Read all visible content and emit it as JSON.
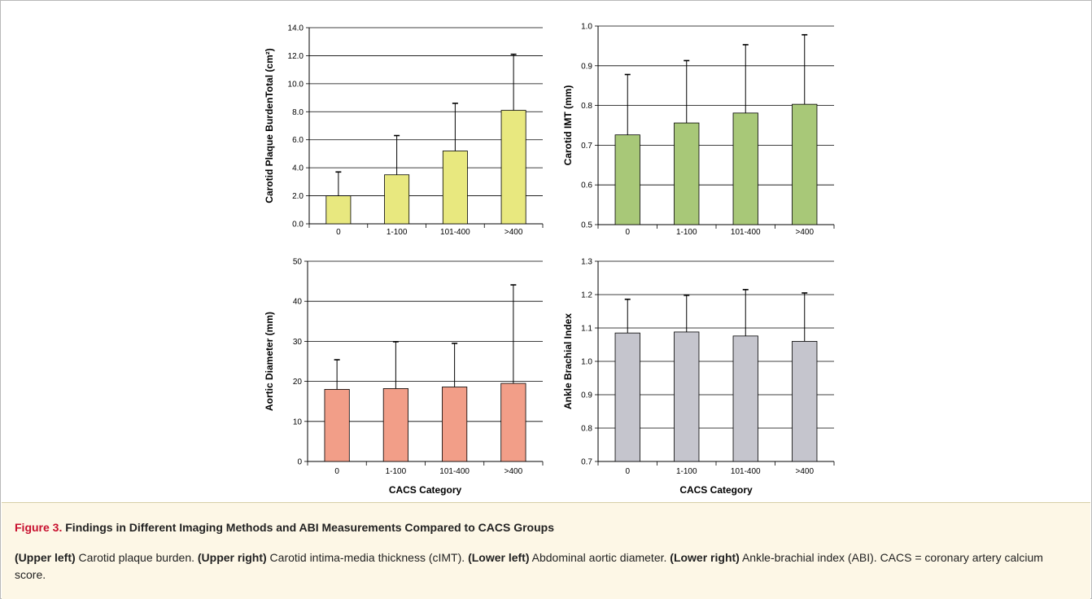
{
  "chart_data": [
    {
      "type": "bar",
      "categories": [
        "0",
        "1-100",
        "101-400",
        ">400"
      ],
      "values": [
        2.0,
        3.5,
        5.2,
        8.1
      ],
      "error_upper": [
        3.7,
        6.3,
        8.6,
        12.1
      ],
      "ylabel": "Carotid Plaque BurdenTotal (cm²)",
      "xlabel": "",
      "ylim": [
        0.0,
        14.0
      ],
      "yticks": [
        "0.0",
        "2.0",
        "4.0",
        "6.0",
        "8.0",
        "10.0",
        "12.0",
        "14.0"
      ],
      "color": "#e8e87f",
      "grid": true
    },
    {
      "type": "bar",
      "categories": [
        "0",
        "1-100",
        "101-400",
        ">400"
      ],
      "values": [
        0.726,
        0.756,
        0.781,
        0.803
      ],
      "error_upper": [
        0.878,
        0.913,
        0.953,
        0.978
      ],
      "ylabel": "Carotid IMT (mm)",
      "xlabel": "",
      "ylim": [
        0.5,
        1.0
      ],
      "yticks": [
        "0.5",
        "0.6",
        "0.7",
        "0.8",
        "0.9",
        "1.0"
      ],
      "color": "#a8c878",
      "grid": true
    },
    {
      "type": "bar",
      "categories": [
        "0",
        "1-100",
        "101-400",
        ">400"
      ],
      "values": [
        18.0,
        18.2,
        18.6,
        19.5
      ],
      "error_upper": [
        25.4,
        29.9,
        29.5,
        44.1
      ],
      "ylabel": "Aortic Diameter (mm)",
      "xlabel": "CACS Category",
      "ylim": [
        0,
        50
      ],
      "yticks": [
        "0",
        "10",
        "20",
        "30",
        "40",
        "50"
      ],
      "color": "#f29e88",
      "grid": true
    },
    {
      "type": "bar",
      "categories": [
        "0",
        "1-100",
        "101-400",
        ">400"
      ],
      "values": [
        1.085,
        1.088,
        1.076,
        1.06
      ],
      "error_upper": [
        1.186,
        1.198,
        1.215,
        1.205
      ],
      "ylabel": "Ankle Brachial Index",
      "xlabel": "CACS Category",
      "ylim": [
        0.7,
        1.3
      ],
      "yticks": [
        "0.7",
        "0.8",
        "0.9",
        "1.0",
        "1.1",
        "1.2",
        "1.3"
      ],
      "color": "#c5c5cd",
      "grid": true
    }
  ],
  "caption": {
    "figure_label": "Figure 3.",
    "title": "Findings in Different Imaging Methods and ABI Measurements Compared to CACS Groups",
    "p1_label": "(Upper left)",
    "p1_text": " Carotid plaque burden. ",
    "p2_label": "(Upper right)",
    "p2_text": " Carotid intima-media thickness (cIMT). ",
    "p3_label": "(Lower left)",
    "p3_text": " Abdominal aortic diameter. ",
    "p4_label": "(Lower right)",
    "p4_text": " Ankle-brachial index (ABI). CACS = coronary artery calcium score."
  }
}
